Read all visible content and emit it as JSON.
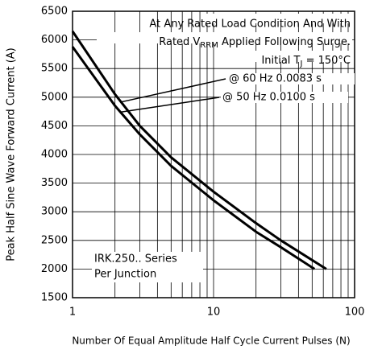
{
  "chart_data": {
    "type": "line",
    "xlabel": "Number Of Equal Amplitude Half Cycle Current Pulses (N)",
    "ylabel": "Peak Half Sine Wave Forward Current (A)",
    "xscale": "log",
    "grid": true,
    "xlim": [
      1,
      100
    ],
    "xticks": [
      1,
      10,
      100
    ],
    "ylim": [
      1500,
      6500
    ],
    "yticks": [
      1500,
      2000,
      2500,
      3000,
      3500,
      4000,
      4500,
      5000,
      5500,
      6000,
      6500
    ],
    "conditions": [
      "At Any Rated Load Condition And With",
      [
        "Rated V",
        "RRM",
        " Applied Following Surge."
      ],
      [
        "Initial T",
        "J",
        " = 150°C"
      ]
    ],
    "series_note": [
      "IRK.250.. Series",
      "Per Junction"
    ],
    "series": [
      {
        "name": "@ 60 Hz 0.0083 s",
        "color": "#000000",
        "x": [
          1,
          2,
          3,
          5,
          10,
          20,
          30,
          63
        ],
        "values": [
          6150,
          5050,
          4500,
          3950,
          3350,
          2800,
          2500,
          2000
        ]
      },
      {
        "name": "@ 50 Hz 0.0100 s",
        "color": "#000000",
        "x": [
          1,
          2,
          3,
          5,
          10,
          20,
          30,
          52
        ],
        "values": [
          5880,
          4850,
          4350,
          3800,
          3200,
          2650,
          2380,
          2000
        ]
      }
    ]
  }
}
